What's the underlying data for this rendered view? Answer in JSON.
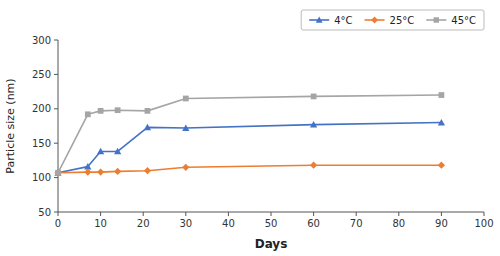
{
  "chart_data": {
    "type": "line",
    "xlabel": "Days",
    "ylabel": "Particle size (nm)",
    "x": [
      0,
      7,
      10,
      14,
      21,
      30,
      60,
      90
    ],
    "series": [
      {
        "name": "4°C",
        "color": "#4472C4",
        "marker": "triangle",
        "values": [
          107,
          116,
          138,
          138,
          173,
          172,
          177,
          180
        ]
      },
      {
        "name": "25°C",
        "color": "#ED7D31",
        "marker": "diamond",
        "values": [
          107,
          108,
          108,
          109,
          110,
          115,
          118,
          118
        ]
      },
      {
        "name": "45°C",
        "color": "#A5A5A5",
        "marker": "square",
        "values": [
          107,
          192,
          197,
          198,
          197,
          215,
          218,
          220
        ]
      }
    ],
    "xlim": [
      0,
      100
    ],
    "ylim": [
      50,
      300
    ],
    "xticks": [
      0,
      10,
      20,
      30,
      40,
      50,
      60,
      70,
      80,
      90,
      100
    ],
    "yticks": [
      50,
      100,
      150,
      200,
      250,
      300
    ],
    "grid": false,
    "legend": "top"
  }
}
